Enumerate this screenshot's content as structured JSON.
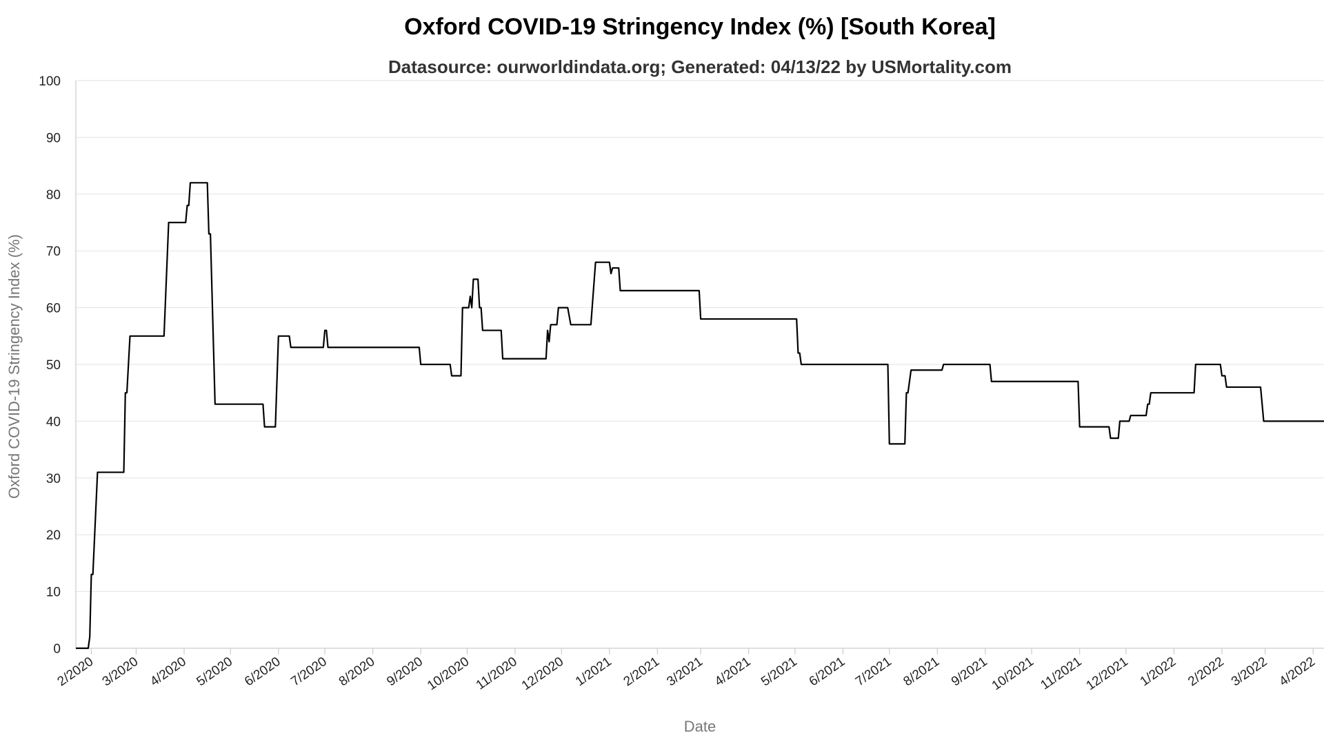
{
  "chart_data": {
    "type": "line",
    "title": "Oxford COVID-19 Stringency Index (%) [South Korea]",
    "subtitle": "Datasource: ourworldindata.org; Generated: 04/13/22 by USMortality.com",
    "xlabel": "Date",
    "ylabel": "Oxford COVID-19 Stringency Index (%)",
    "ylim": [
      0,
      100
    ],
    "xlim": [
      "2020-01-22",
      "2022-04-08"
    ],
    "grid": true,
    "legend": "none",
    "y_ticks": [
      0,
      10,
      20,
      30,
      40,
      50,
      60,
      70,
      80,
      90,
      100
    ],
    "x_ticks": [
      {
        "date": "2020-02-01",
        "label": "2/2020"
      },
      {
        "date": "2020-03-01",
        "label": "3/2020"
      },
      {
        "date": "2020-04-01",
        "label": "4/2020"
      },
      {
        "date": "2020-05-01",
        "label": "5/2020"
      },
      {
        "date": "2020-06-01",
        "label": "6/2020"
      },
      {
        "date": "2020-07-01",
        "label": "7/2020"
      },
      {
        "date": "2020-08-01",
        "label": "8/2020"
      },
      {
        "date": "2020-09-01",
        "label": "9/2020"
      },
      {
        "date": "2020-10-01",
        "label": "10/2020"
      },
      {
        "date": "2020-11-01",
        "label": "11/2020"
      },
      {
        "date": "2020-12-01",
        "label": "12/2020"
      },
      {
        "date": "2021-01-01",
        "label": "1/2021"
      },
      {
        "date": "2021-02-01",
        "label": "2/2021"
      },
      {
        "date": "2021-03-01",
        "label": "3/2021"
      },
      {
        "date": "2021-04-01",
        "label": "4/2021"
      },
      {
        "date": "2021-05-01",
        "label": "5/2021"
      },
      {
        "date": "2021-06-01",
        "label": "6/2021"
      },
      {
        "date": "2021-07-01",
        "label": "7/2021"
      },
      {
        "date": "2021-08-01",
        "label": "8/2021"
      },
      {
        "date": "2021-09-01",
        "label": "9/2021"
      },
      {
        "date": "2021-10-01",
        "label": "10/2021"
      },
      {
        "date": "2021-11-01",
        "label": "11/2021"
      },
      {
        "date": "2021-12-01",
        "label": "12/2021"
      },
      {
        "date": "2022-01-01",
        "label": "1/2022"
      },
      {
        "date": "2022-02-01",
        "label": "2/2022"
      },
      {
        "date": "2022-03-01",
        "label": "3/2022"
      },
      {
        "date": "2022-04-01",
        "label": "4/2022"
      }
    ],
    "series": [
      {
        "color": "#000000",
        "points": [
          [
            "2020-01-22",
            0
          ],
          [
            "2020-01-30",
            0
          ],
          [
            "2020-01-31",
            2
          ],
          [
            "2020-02-01",
            13
          ],
          [
            "2020-02-02",
            13
          ],
          [
            "2020-02-05",
            31
          ],
          [
            "2020-02-22",
            31
          ],
          [
            "2020-02-23",
            45
          ],
          [
            "2020-02-24",
            45
          ],
          [
            "2020-02-26",
            55
          ],
          [
            "2020-03-19",
            55
          ],
          [
            "2020-03-22",
            75
          ],
          [
            "2020-04-02",
            75
          ],
          [
            "2020-04-03",
            78
          ],
          [
            "2020-04-04",
            78
          ],
          [
            "2020-04-05",
            82
          ],
          [
            "2020-04-16",
            82
          ],
          [
            "2020-04-17",
            73
          ],
          [
            "2020-04-18",
            73
          ],
          [
            "2020-04-21",
            43
          ],
          [
            "2020-05-22",
            43
          ],
          [
            "2020-05-23",
            39
          ],
          [
            "2020-05-30",
            39
          ],
          [
            "2020-06-01",
            55
          ],
          [
            "2020-06-08",
            55
          ],
          [
            "2020-06-09",
            53
          ],
          [
            "2020-06-30",
            53
          ],
          [
            "2020-07-01",
            56
          ],
          [
            "2020-07-02",
            56
          ],
          [
            "2020-07-03",
            53
          ],
          [
            "2020-08-31",
            53
          ],
          [
            "2020-09-01",
            50
          ],
          [
            "2020-09-20",
            50
          ],
          [
            "2020-09-21",
            48
          ],
          [
            "2020-09-27",
            48
          ],
          [
            "2020-09-28",
            60
          ],
          [
            "2020-10-02",
            60
          ],
          [
            "2020-10-03",
            62
          ],
          [
            "2020-10-04",
            60
          ],
          [
            "2020-10-05",
            65
          ],
          [
            "2020-10-08",
            65
          ],
          [
            "2020-10-09",
            60
          ],
          [
            "2020-10-10",
            60
          ],
          [
            "2020-10-11",
            56
          ],
          [
            "2020-10-23",
            56
          ],
          [
            "2020-10-24",
            51
          ],
          [
            "2020-11-21",
            51
          ],
          [
            "2020-11-22",
            56
          ],
          [
            "2020-11-23",
            54
          ],
          [
            "2020-11-24",
            57
          ],
          [
            "2020-11-28",
            57
          ],
          [
            "2020-11-29",
            60
          ],
          [
            "2020-12-05",
            60
          ],
          [
            "2020-12-07",
            57
          ],
          [
            "2020-12-20",
            57
          ],
          [
            "2020-12-23",
            68
          ],
          [
            "2021-01-01",
            68
          ],
          [
            "2021-01-02",
            66
          ],
          [
            "2021-01-03",
            67
          ],
          [
            "2021-01-07",
            67
          ],
          [
            "2021-01-08",
            63
          ],
          [
            "2021-02-28",
            63
          ],
          [
            "2021-03-01",
            58
          ],
          [
            "2021-05-02",
            58
          ],
          [
            "2021-05-03",
            52
          ],
          [
            "2021-05-04",
            52
          ],
          [
            "2021-05-05",
            50
          ],
          [
            "2021-06-30",
            50
          ],
          [
            "2021-07-01",
            36
          ],
          [
            "2021-07-11",
            36
          ],
          [
            "2021-07-12",
            45
          ],
          [
            "2021-07-13",
            45
          ],
          [
            "2021-07-15",
            49
          ],
          [
            "2021-08-04",
            49
          ],
          [
            "2021-08-05",
            50
          ],
          [
            "2021-09-04",
            50
          ],
          [
            "2021-09-05",
            47
          ],
          [
            "2021-10-31",
            47
          ],
          [
            "2021-11-01",
            39
          ],
          [
            "2021-11-20",
            39
          ],
          [
            "2021-11-21",
            37
          ],
          [
            "2021-11-26",
            37
          ],
          [
            "2021-11-27",
            40
          ],
          [
            "2021-12-03",
            40
          ],
          [
            "2021-12-04",
            41
          ],
          [
            "2021-12-14",
            41
          ],
          [
            "2021-12-15",
            43
          ],
          [
            "2021-12-16",
            43
          ],
          [
            "2021-12-17",
            45
          ],
          [
            "2022-01-14",
            45
          ],
          [
            "2022-01-15",
            50
          ],
          [
            "2022-01-31",
            50
          ],
          [
            "2022-02-01",
            48
          ],
          [
            "2022-02-03",
            48
          ],
          [
            "2022-02-04",
            46
          ],
          [
            "2022-02-26",
            46
          ],
          [
            "2022-02-28",
            40
          ],
          [
            "2022-04-08",
            40
          ]
        ]
      }
    ]
  }
}
